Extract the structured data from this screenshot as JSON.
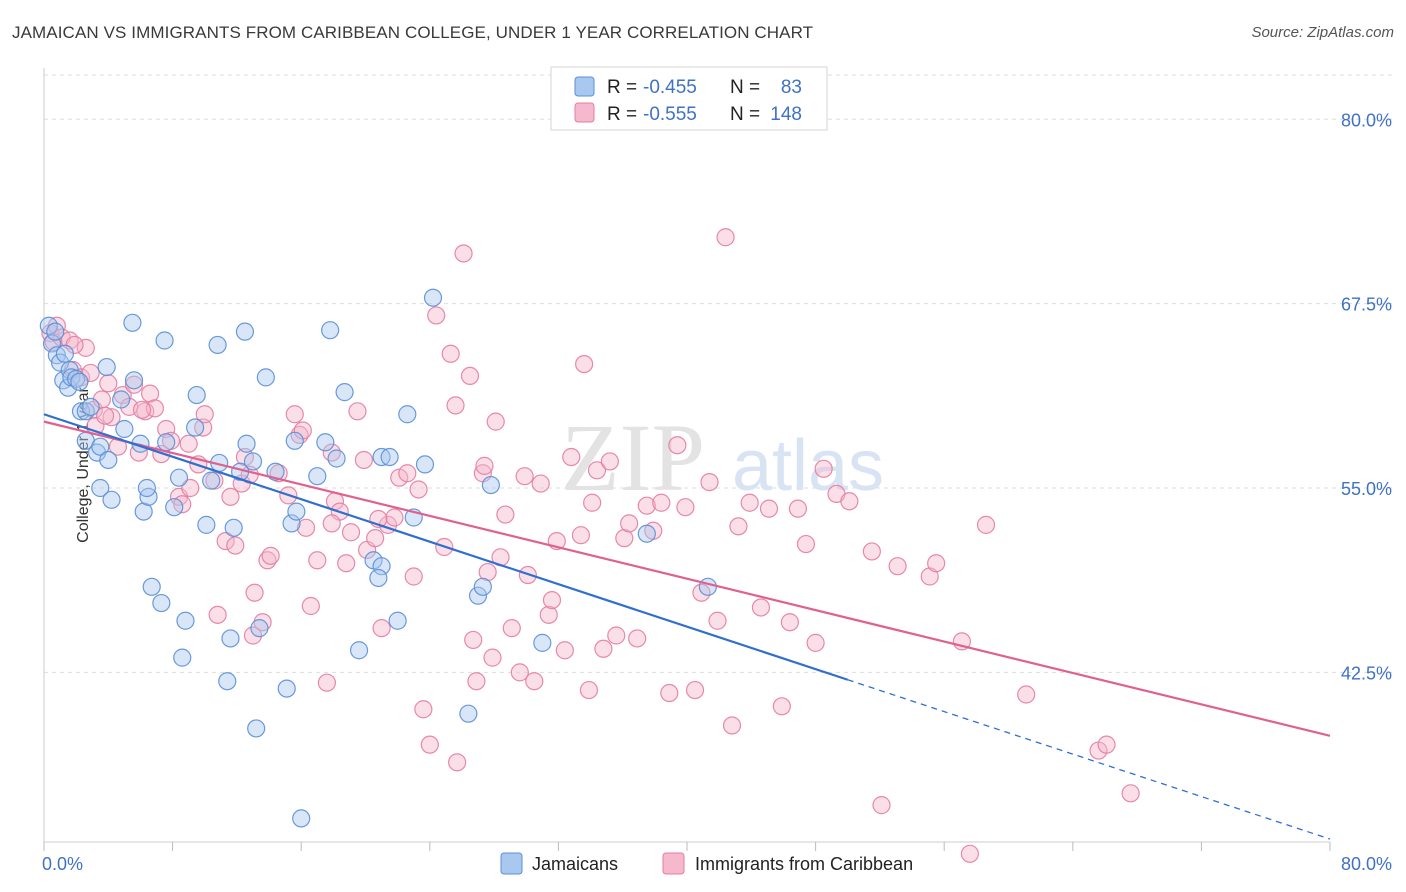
{
  "title": "JAMAICAN VS IMMIGRANTS FROM CARIBBEAN COLLEGE, UNDER 1 YEAR CORRELATION CHART",
  "source": "Source: ZipAtlas.com",
  "watermark": {
    "zip": "ZIP",
    "atlas": "atlas"
  },
  "colors": {
    "blue_fill": "#a8c8f0",
    "blue_stroke": "#5b8fd6",
    "blue_line": "#2f6fd0",
    "pink_fill": "#f5b8cc",
    "pink_stroke": "#e47da0",
    "pink_line": "#e06090",
    "tick_label": "#3f72c4",
    "grid": "#dddddd"
  },
  "legend": {
    "rows": [
      {
        "r_label": "R =",
        "r_value": "-0.455",
        "n_label": "N =",
        "n_value": "83",
        "series": "blue"
      },
      {
        "r_label": "R =",
        "r_value": "-0.555",
        "n_label": "N =",
        "n_value": "148",
        "series": "pink"
      }
    ]
  },
  "chart_data": {
    "type": "scatter",
    "title": "JAMAICAN VS IMMIGRANTS FROM CARIBBEAN COLLEGE, UNDER 1 YEAR CORRELATION CHART",
    "xlabel": "",
    "ylabel": "College, Under 1 year",
    "xlim": [
      0,
      80
    ],
    "ylim": [
      31,
      83
    ],
    "x_tick_labels": {
      "left": "0.0%",
      "right": "80.0%"
    },
    "y_ticks": [
      {
        "value": 80.0,
        "label": "80.0%"
      },
      {
        "value": 67.5,
        "label": "67.5%"
      },
      {
        "value": 55.0,
        "label": "55.0%"
      },
      {
        "value": 42.5,
        "label": "42.5%"
      }
    ],
    "grid": true,
    "legend_position": "bottom",
    "series": [
      {
        "name": "Jamaicans",
        "color": "blue",
        "r": -0.455,
        "n": 83,
        "trend": {
          "x0": 0,
          "y0": 60.0,
          "x1": 50,
          "y1": 42.0,
          "dash_to_x": 80,
          "dash_to_y": 31.2
        },
        "points": [
          [
            0.3,
            66.0
          ],
          [
            0.5,
            64.8
          ],
          [
            0.8,
            64.0
          ],
          [
            1.0,
            63.5
          ],
          [
            1.2,
            62.3
          ],
          [
            1.5,
            61.8
          ],
          [
            1.6,
            63.0
          ],
          [
            1.7,
            62.5
          ],
          [
            2.0,
            62.4
          ],
          [
            2.3,
            60.2
          ],
          [
            2.6,
            60.2
          ],
          [
            2.6,
            58.2
          ],
          [
            2.9,
            60.5
          ],
          [
            3.3,
            57.4
          ],
          [
            3.5,
            57.8
          ],
          [
            3.9,
            63.2
          ],
          [
            3.5,
            55.0
          ],
          [
            4.2,
            54.2
          ],
          [
            4.8,
            61.0
          ],
          [
            5.0,
            59.0
          ],
          [
            5.6,
            62.3
          ],
          [
            5.5,
            66.2
          ],
          [
            6.0,
            58.0
          ],
          [
            6.2,
            53.4
          ],
          [
            6.5,
            54.4
          ],
          [
            6.7,
            48.3
          ],
          [
            7.3,
            47.2
          ],
          [
            7.6,
            58.1
          ],
          [
            7.5,
            65.0
          ],
          [
            8.1,
            53.7
          ],
          [
            8.4,
            55.7
          ],
          [
            8.8,
            46.0
          ],
          [
            8.6,
            43.5
          ],
          [
            9.5,
            61.3
          ],
          [
            9.4,
            59.1
          ],
          [
            10.1,
            52.5
          ],
          [
            10.4,
            55.5
          ],
          [
            10.8,
            64.7
          ],
          [
            10.9,
            56.7
          ],
          [
            11.4,
            41.9
          ],
          [
            11.6,
            44.8
          ],
          [
            11.8,
            52.3
          ],
          [
            12.2,
            56.1
          ],
          [
            12.6,
            58.0
          ],
          [
            12.5,
            65.6
          ],
          [
            13.0,
            56.8
          ],
          [
            13.4,
            45.5
          ],
          [
            13.2,
            38.7
          ],
          [
            13.8,
            62.5
          ],
          [
            14.4,
            56.1
          ],
          [
            15.1,
            41.4
          ],
          [
            15.4,
            52.6
          ],
          [
            15.6,
            58.2
          ],
          [
            15.7,
            53.4
          ],
          [
            16.0,
            32.6
          ],
          [
            17.0,
            55.8
          ],
          [
            17.5,
            58.1
          ],
          [
            17.8,
            65.7
          ],
          [
            18.2,
            57.0
          ],
          [
            18.7,
            61.5
          ],
          [
            19.6,
            44.0
          ],
          [
            20.5,
            50.1
          ],
          [
            21.0,
            49.7
          ],
          [
            20.8,
            48.9
          ],
          [
            21.0,
            57.1
          ],
          [
            21.5,
            57.1
          ],
          [
            22.0,
            46.0
          ],
          [
            22.6,
            60.0
          ],
          [
            23.0,
            53.0
          ],
          [
            23.7,
            56.6
          ],
          [
            24.2,
            67.9
          ],
          [
            26.4,
            39.7
          ],
          [
            27.0,
            47.7
          ],
          [
            27.3,
            48.3
          ],
          [
            27.8,
            55.2
          ],
          [
            31.0,
            44.5
          ],
          [
            37.5,
            51.9
          ],
          [
            41.3,
            48.3
          ],
          [
            0.7,
            65.6
          ],
          [
            1.3,
            64.1
          ],
          [
            2.2,
            62.2
          ],
          [
            4.0,
            56.9
          ],
          [
            6.4,
            55.0
          ]
        ]
      },
      {
        "name": "Immigrants from Caribbean",
        "color": "pink",
        "r": -0.555,
        "n": 148,
        "trend": {
          "x0": 0,
          "y0": 59.5,
          "x1": 80,
          "y1": 38.2
        },
        "points": [
          [
            0.4,
            65.5
          ],
          [
            0.6,
            64.9
          ],
          [
            0.8,
            66.0
          ],
          [
            1.1,
            65.2
          ],
          [
            1.6,
            65.0
          ],
          [
            1.8,
            63.0
          ],
          [
            2.3,
            62.5
          ],
          [
            2.6,
            64.5
          ],
          [
            2.9,
            62.8
          ],
          [
            3.1,
            60.3
          ],
          [
            3.2,
            59.2
          ],
          [
            3.6,
            61.0
          ],
          [
            4.0,
            62.1
          ],
          [
            4.2,
            59.8
          ],
          [
            4.6,
            57.8
          ],
          [
            4.9,
            61.3
          ],
          [
            5.3,
            60.5
          ],
          [
            5.6,
            62.0
          ],
          [
            5.9,
            57.4
          ],
          [
            6.3,
            60.2
          ],
          [
            6.6,
            61.4
          ],
          [
            6.9,
            60.4
          ],
          [
            7.3,
            57.3
          ],
          [
            7.6,
            59.0
          ],
          [
            7.9,
            58.2
          ],
          [
            8.4,
            54.4
          ],
          [
            8.6,
            53.9
          ],
          [
            9.1,
            55.0
          ],
          [
            9.6,
            56.6
          ],
          [
            9.9,
            59.1
          ],
          [
            10.0,
            60.0
          ],
          [
            10.6,
            55.5
          ],
          [
            10.8,
            46.4
          ],
          [
            11.3,
            51.4
          ],
          [
            11.6,
            54.4
          ],
          [
            11.9,
            51.1
          ],
          [
            12.3,
            55.3
          ],
          [
            12.5,
            57.1
          ],
          [
            13.1,
            47.9
          ],
          [
            13.6,
            45.9
          ],
          [
            13.9,
            50.1
          ],
          [
            14.1,
            50.4
          ],
          [
            14.6,
            56.0
          ],
          [
            15.2,
            54.5
          ],
          [
            15.6,
            60.0
          ],
          [
            15.9,
            58.6
          ],
          [
            16.1,
            58.9
          ],
          [
            16.3,
            52.3
          ],
          [
            16.6,
            47.0
          ],
          [
            17.0,
            50.1
          ],
          [
            17.6,
            41.8
          ],
          [
            17.9,
            57.4
          ],
          [
            18.1,
            54.1
          ],
          [
            18.4,
            53.4
          ],
          [
            18.8,
            49.9
          ],
          [
            19.1,
            52.0
          ],
          [
            19.5,
            60.2
          ],
          [
            19.9,
            56.9
          ],
          [
            20.1,
            50.8
          ],
          [
            20.6,
            51.6
          ],
          [
            21.0,
            45.5
          ],
          [
            21.4,
            52.5
          ],
          [
            21.8,
            53.0
          ],
          [
            22.1,
            55.7
          ],
          [
            22.6,
            56.0
          ],
          [
            23.0,
            49.0
          ],
          [
            23.3,
            54.9
          ],
          [
            23.6,
            40.0
          ],
          [
            24.0,
            37.6
          ],
          [
            24.4,
            66.7
          ],
          [
            24.9,
            51.0
          ],
          [
            25.3,
            64.1
          ],
          [
            25.6,
            60.6
          ],
          [
            25.7,
            36.4
          ],
          [
            26.1,
            70.9
          ],
          [
            26.5,
            62.6
          ],
          [
            26.7,
            44.7
          ],
          [
            26.9,
            41.9
          ],
          [
            27.3,
            56.0
          ],
          [
            27.6,
            49.3
          ],
          [
            27.9,
            43.5
          ],
          [
            28.1,
            59.5
          ],
          [
            28.4,
            50.3
          ],
          [
            28.7,
            53.2
          ],
          [
            29.1,
            45.5
          ],
          [
            29.6,
            42.5
          ],
          [
            29.9,
            55.8
          ],
          [
            30.1,
            49.1
          ],
          [
            30.5,
            41.9
          ],
          [
            30.9,
            55.3
          ],
          [
            31.4,
            46.4
          ],
          [
            31.6,
            47.4
          ],
          [
            31.9,
            51.4
          ],
          [
            32.4,
            44.0
          ],
          [
            32.8,
            57.1
          ],
          [
            33.4,
            51.8
          ],
          [
            33.6,
            63.4
          ],
          [
            33.9,
            41.3
          ],
          [
            34.1,
            54.0
          ],
          [
            34.4,
            56.2
          ],
          [
            34.8,
            44.1
          ],
          [
            35.2,
            56.8
          ],
          [
            35.6,
            45.0
          ],
          [
            36.1,
            51.6
          ],
          [
            36.4,
            52.6
          ],
          [
            36.9,
            44.8
          ],
          [
            37.5,
            53.8
          ],
          [
            37.9,
            52.1
          ],
          [
            38.4,
            54.0
          ],
          [
            38.9,
            41.1
          ],
          [
            39.4,
            57.9
          ],
          [
            39.9,
            53.7
          ],
          [
            40.5,
            41.3
          ],
          [
            40.9,
            47.9
          ],
          [
            41.4,
            55.4
          ],
          [
            41.9,
            46.0
          ],
          [
            42.4,
            72.0
          ],
          [
            42.8,
            38.9
          ],
          [
            43.2,
            52.4
          ],
          [
            43.9,
            54.0
          ],
          [
            44.6,
            46.9
          ],
          [
            45.1,
            53.6
          ],
          [
            45.9,
            40.2
          ],
          [
            46.4,
            45.9
          ],
          [
            46.9,
            53.6
          ],
          [
            47.4,
            51.2
          ],
          [
            48.0,
            44.5
          ],
          [
            48.5,
            56.3
          ],
          [
            49.3,
            54.6
          ],
          [
            50.1,
            54.1
          ],
          [
            51.5,
            50.7
          ],
          [
            53.1,
            49.7
          ],
          [
            55.1,
            49.0
          ],
          [
            55.5,
            49.9
          ],
          [
            57.1,
            44.6
          ],
          [
            58.6,
            52.5
          ],
          [
            61.1,
            41.0
          ],
          [
            65.6,
            37.2
          ],
          [
            66.1,
            37.6
          ],
          [
            67.6,
            34.3
          ],
          [
            52.1,
            33.5
          ],
          [
            57.6,
            30.2
          ],
          [
            13.0,
            45.0
          ],
          [
            9.0,
            58.0
          ],
          [
            3.8,
            59.9
          ],
          [
            1.9,
            64.7
          ],
          [
            20.8,
            52.9
          ],
          [
            27.4,
            56.5
          ],
          [
            12.8,
            55.9
          ],
          [
            6.1,
            60.3
          ],
          [
            17.9,
            52.6
          ]
        ]
      }
    ]
  }
}
